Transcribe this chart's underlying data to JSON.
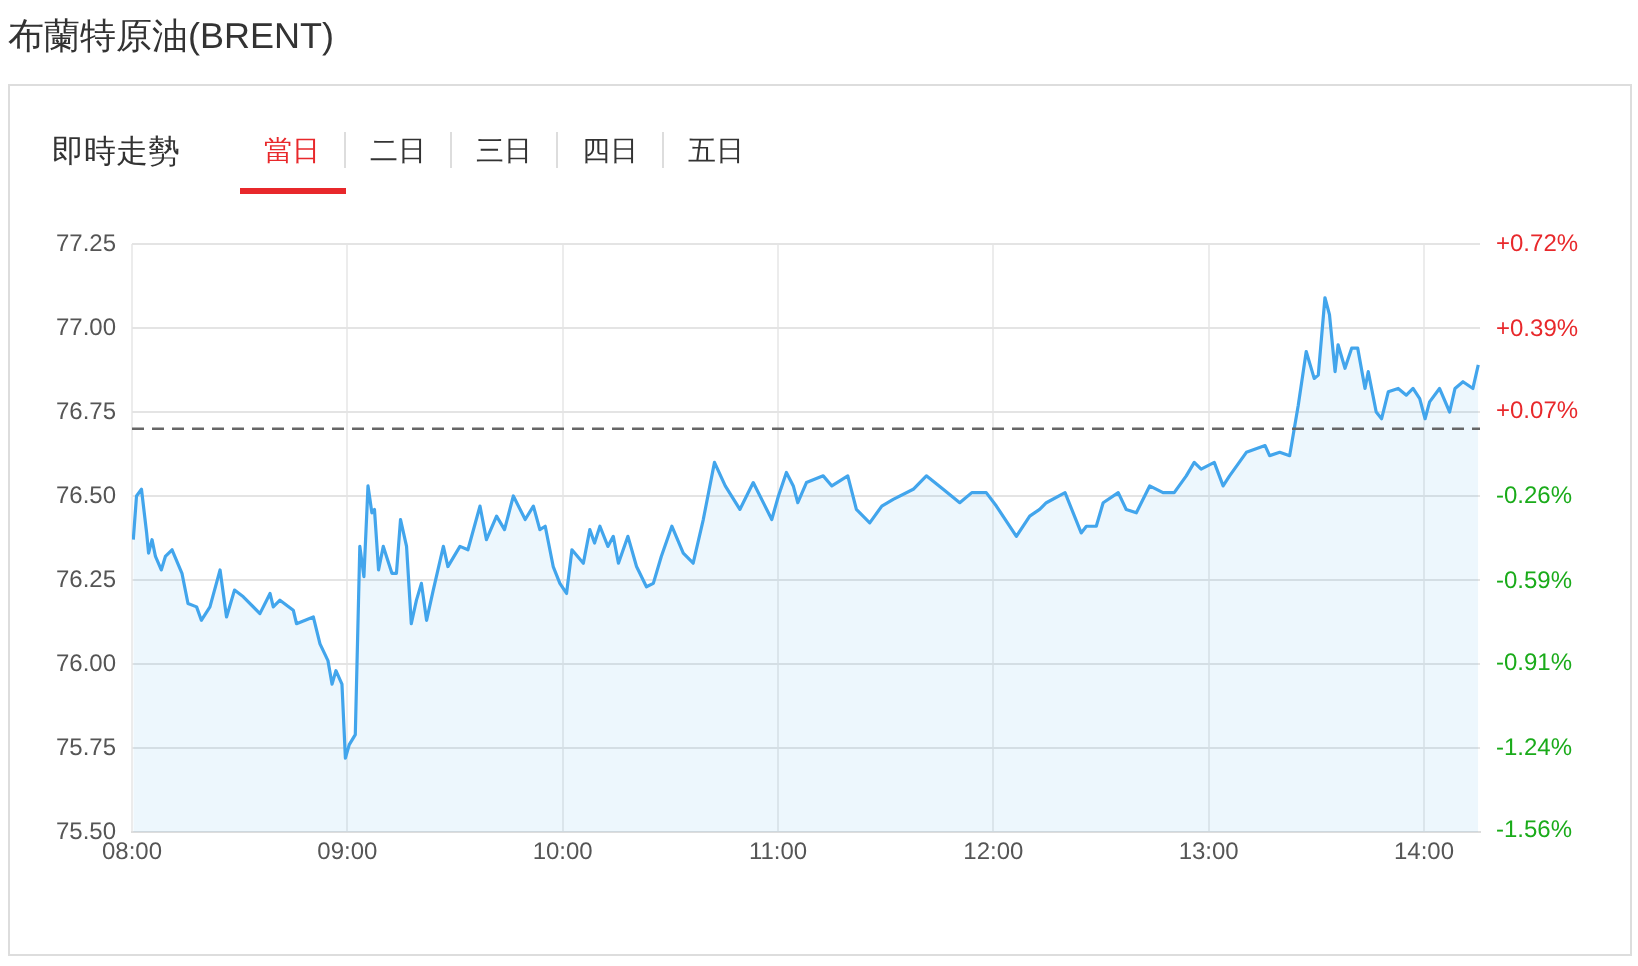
{
  "chart_data": {
    "type": "area",
    "title": "布蘭特原油(BRENT)",
    "subtitle": "即時走勢",
    "annotations": [
      "當日",
      "二日",
      "三日",
      "四日",
      "五日"
    ],
    "xlim": [
      8,
      14.26
    ],
    "xticks": [
      {
        "value": 8,
        "label": "08:00"
      },
      {
        "value": 9,
        "label": "09:00"
      },
      {
        "value": 10,
        "label": "10:00"
      },
      {
        "value": 11,
        "label": "11:00"
      },
      {
        "value": 12,
        "label": "12:00"
      },
      {
        "value": 13,
        "label": "13:00"
      },
      {
        "value": 14,
        "label": "14:00"
      }
    ],
    "ylim": [
      75.5,
      77.25
    ],
    "yticks": [
      {
        "value": 75.5,
        "label": "75.50"
      },
      75.75,
      {
        "value": 76,
        "label": "76.00"
      },
      76.25,
      {
        "value": 76.5,
        "label": "76.50"
      },
      76.75,
      {
        "value": 77,
        "label": "77.00"
      },
      77.25
    ],
    "y2lim": [
      -1.565,
      0.72
    ],
    "y2ticks": [
      {
        "value": -1.56,
        "label": "-1.56%"
      },
      {
        "value": -1.24,
        "label": "-1.24%"
      },
      {
        "value": -0.91,
        "label": "-0.91%"
      },
      {
        "value": -0.59,
        "label": "-0.59%"
      },
      {
        "value": -0.26,
        "label": "-0.26%"
      },
      {
        "value": 0.07,
        "label": "+0.07%"
      },
      {
        "value": 0.39,
        "label": "+0.39%"
      },
      {
        "value": 0.72,
        "label": "+0.72%"
      }
    ],
    "grid": true,
    "legend": false,
    "marker": "none",
    "line_style": "solid",
    "ref_lines": [
      {
        "axis": "y",
        "value": 76.7,
        "color": "#666666",
        "line_style": "dashed"
      }
    ],
    "series": [
      {
        "color": "#42a5ec",
        "x": [
          8.006,
          8.021,
          8.044,
          8.068,
          8.077,
          8.093,
          8.109,
          8.136,
          8.155,
          8.186,
          8.232,
          8.26,
          8.3,
          8.322,
          8.362,
          8.409,
          8.439,
          8.476,
          8.517,
          8.594,
          8.641,
          8.656,
          8.687,
          8.749,
          8.764,
          8.842,
          8.873,
          8.91,
          8.929,
          8.947,
          8.975,
          8.991,
          9.009,
          9.037,
          9.058,
          9.077,
          9.096,
          9.114,
          9.126,
          9.145,
          9.167,
          9.207,
          9.228,
          9.247,
          9.275,
          9.297,
          9.321,
          9.344,
          9.368,
          9.399,
          9.446,
          9.467,
          9.523,
          9.56,
          9.616,
          9.646,
          9.693,
          9.73,
          9.771,
          9.826,
          9.864,
          9.894,
          9.919,
          9.956,
          9.987,
          10.018,
          10.043,
          10.096,
          10.126,
          10.148,
          10.173,
          10.21,
          10.235,
          10.259,
          10.303,
          10.343,
          10.389,
          10.421,
          10.458,
          10.507,
          10.56,
          10.606,
          10.653,
          10.705,
          10.755,
          10.823,
          10.885,
          10.971,
          11.002,
          11.039,
          11.071,
          11.092,
          11.132,
          11.21,
          11.25,
          11.324,
          11.364,
          11.426,
          11.482,
          11.535,
          11.628,
          11.689,
          11.767,
          11.844,
          11.9,
          11.967,
          12.014,
          12.107,
          12.169,
          12.215,
          12.246,
          12.333,
          12.408,
          12.432,
          12.478,
          12.51,
          12.58,
          12.617,
          12.664,
          12.726,
          12.788,
          12.84,
          12.896,
          12.933,
          12.965,
          13.026,
          13.067,
          13.097,
          13.175,
          13.262,
          13.283,
          13.33,
          13.376,
          13.416,
          13.453,
          13.49,
          13.509,
          13.54,
          13.561,
          13.587,
          13.601,
          13.633,
          13.664,
          13.692,
          13.726,
          13.741,
          13.778,
          13.803,
          13.834,
          13.88,
          13.918,
          13.949,
          13.98,
          14.005,
          14.026,
          14.072,
          14.119,
          14.144,
          14.181,
          14.227,
          14.252
        ],
        "values": [
          76.37,
          76.5,
          76.52,
          76.39,
          76.33,
          76.37,
          76.32,
          76.28,
          76.32,
          76.34,
          76.27,
          76.18,
          76.17,
          76.13,
          76.17,
          76.28,
          76.14,
          76.22,
          76.2,
          76.15,
          76.21,
          76.17,
          76.19,
          76.16,
          76.12,
          76.14,
          76.06,
          76.01,
          75.94,
          75.98,
          75.94,
          75.72,
          75.76,
          75.79,
          76.35,
          76.26,
          76.53,
          76.45,
          76.46,
          76.28,
          76.35,
          76.27,
          76.27,
          76.43,
          76.35,
          76.12,
          76.19,
          76.24,
          76.13,
          76.22,
          76.35,
          76.29,
          76.35,
          76.34,
          76.47,
          76.37,
          76.44,
          76.4,
          76.5,
          76.43,
          76.47,
          76.4,
          76.41,
          76.29,
          76.24,
          76.21,
          76.34,
          76.3,
          76.4,
          76.36,
          76.41,
          76.35,
          76.38,
          76.3,
          76.38,
          76.29,
          76.23,
          76.24,
          76.32,
          76.41,
          76.33,
          76.3,
          76.43,
          76.6,
          76.53,
          76.46,
          76.54,
          76.43,
          76.5,
          76.57,
          76.53,
          76.48,
          76.54,
          76.56,
          76.53,
          76.56,
          76.46,
          76.42,
          76.47,
          76.49,
          76.52,
          76.56,
          76.52,
          76.48,
          76.51,
          76.51,
          76.47,
          76.38,
          76.44,
          76.46,
          76.48,
          76.51,
          76.39,
          76.41,
          76.41,
          76.48,
          76.51,
          76.46,
          76.45,
          76.53,
          76.51,
          76.51,
          76.56,
          76.6,
          76.58,
          76.6,
          76.53,
          76.56,
          76.63,
          76.65,
          76.62,
          76.63,
          76.62,
          76.77,
          76.93,
          76.85,
          76.86,
          77.09,
          77.04,
          76.87,
          76.95,
          76.88,
          76.94,
          76.94,
          76.82,
          76.87,
          76.75,
          76.73,
          76.81,
          76.82,
          76.8,
          76.82,
          76.79,
          76.73,
          76.78,
          76.82,
          76.75,
          76.82,
          76.84,
          76.82,
          76.89
        ]
      }
    ]
  }
}
